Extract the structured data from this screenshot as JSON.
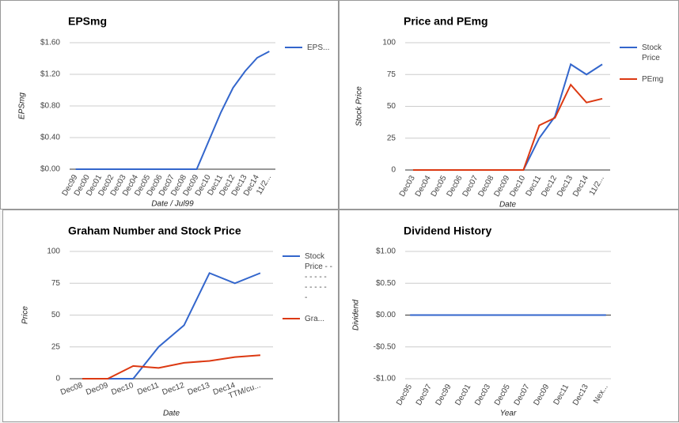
{
  "chart_data": [
    {
      "type": "line",
      "title": "EPSmg",
      "xlabel": "Date / Jul99",
      "ylabel": "EPSmg",
      "categories": [
        "Dec99",
        "Dec00",
        "Dec01",
        "Dec02",
        "Dec03",
        "Dec04",
        "Dec05",
        "Dec06",
        "Dec07",
        "Dec08",
        "Dec09",
        "Dec10",
        "Dec11",
        "Dec12",
        "Dec13",
        "Dec14",
        "11/2..."
      ],
      "series": [
        {
          "name": "EPS...",
          "color": "#3366cc",
          "values": [
            0,
            0,
            0,
            0,
            0,
            0,
            0,
            0,
            0,
            0,
            0,
            0.36,
            0.72,
            1.03,
            1.24,
            1.41,
            1.49
          ]
        }
      ],
      "ylim": [
        0,
        1.6
      ],
      "yticks": [
        {
          "value": 0,
          "label": "$0.00"
        },
        {
          "value": 0.4,
          "label": "$0.40"
        },
        {
          "value": 0.8,
          "label": "$0.80"
        },
        {
          "value": 1.2,
          "label": "$1.20"
        },
        {
          "value": 1.6,
          "label": "$1.60"
        }
      ],
      "grid": true,
      "legend": "right"
    },
    {
      "type": "line",
      "title": "Price and PEmg",
      "xlabel": "Date",
      "ylabel": "Stock Price",
      "categories": [
        "Dec03",
        "Dec04",
        "Dec05",
        "Dec06",
        "Dec07",
        "Dec08",
        "Dec09",
        "Dec10",
        "Dec11",
        "Dec12",
        "Dec13",
        "Dec14",
        "11/2..."
      ],
      "series": [
        {
          "name": "Stock Price",
          "color": "#3366cc",
          "values": [
            0,
            0,
            0,
            0,
            0,
            0,
            0,
            0,
            25,
            42,
            83,
            75,
            83
          ]
        },
        {
          "name": "PEmg",
          "color": "#dc3912",
          "values": [
            0,
            0,
            0,
            0,
            0,
            0,
            0,
            0,
            35,
            41,
            67,
            53,
            56
          ]
        }
      ],
      "ylim": [
        0,
        100
      ],
      "yticks": [
        0,
        25,
        50,
        75,
        100
      ],
      "grid": true,
      "legend": "right"
    },
    {
      "type": "line",
      "title": "Graham Number and Stock Price",
      "xlabel": "Date",
      "ylabel": "Price",
      "categories": [
        "Dec08",
        "Dec09",
        "Dec10",
        "Dec11",
        "Dec12",
        "Dec13",
        "Dec14",
        "TTM/cu..."
      ],
      "series": [
        {
          "name": "Stock Price - - - - - - - - - - - - -",
          "color": "#3366cc",
          "values": [
            0,
            0,
            0,
            25,
            42,
            83,
            75,
            83
          ]
        },
        {
          "name": "Gra...",
          "color": "#dc3912",
          "values": [
            0,
            0,
            10,
            8.5,
            12.5,
            14,
            17,
            18.5
          ]
        }
      ],
      "ylim": [
        0,
        100
      ],
      "yticks": [
        0,
        25,
        50,
        75,
        100
      ],
      "grid": true,
      "legend": "right"
    },
    {
      "type": "line",
      "title": "Dividend History",
      "xlabel": "Year",
      "ylabel": "Dividend",
      "categories": [
        "Dec95",
        null,
        "Dec97",
        null,
        "Dec99",
        null,
        "Dec01",
        null,
        "Dec03",
        null,
        "Dec05",
        null,
        "Dec07",
        null,
        "Dec09",
        null,
        "Dec11",
        null,
        "Dec13",
        null,
        "Nex..."
      ],
      "values": [
        0,
        0,
        0,
        0,
        0,
        0,
        0,
        0,
        0,
        0,
        0,
        0,
        0,
        0,
        0,
        0,
        0,
        0,
        0,
        0,
        0
      ],
      "color": "#3366cc",
      "ylim": [
        -1,
        1
      ],
      "yticks": [
        {
          "value": -1,
          "label": "-$1.00"
        },
        {
          "value": -0.5,
          "label": "-$0.50"
        },
        {
          "value": 0,
          "label": "$0.00"
        },
        {
          "value": 0.5,
          "label": "$0.50"
        },
        {
          "value": 1,
          "label": "$1.00"
        }
      ],
      "grid": true
    }
  ]
}
